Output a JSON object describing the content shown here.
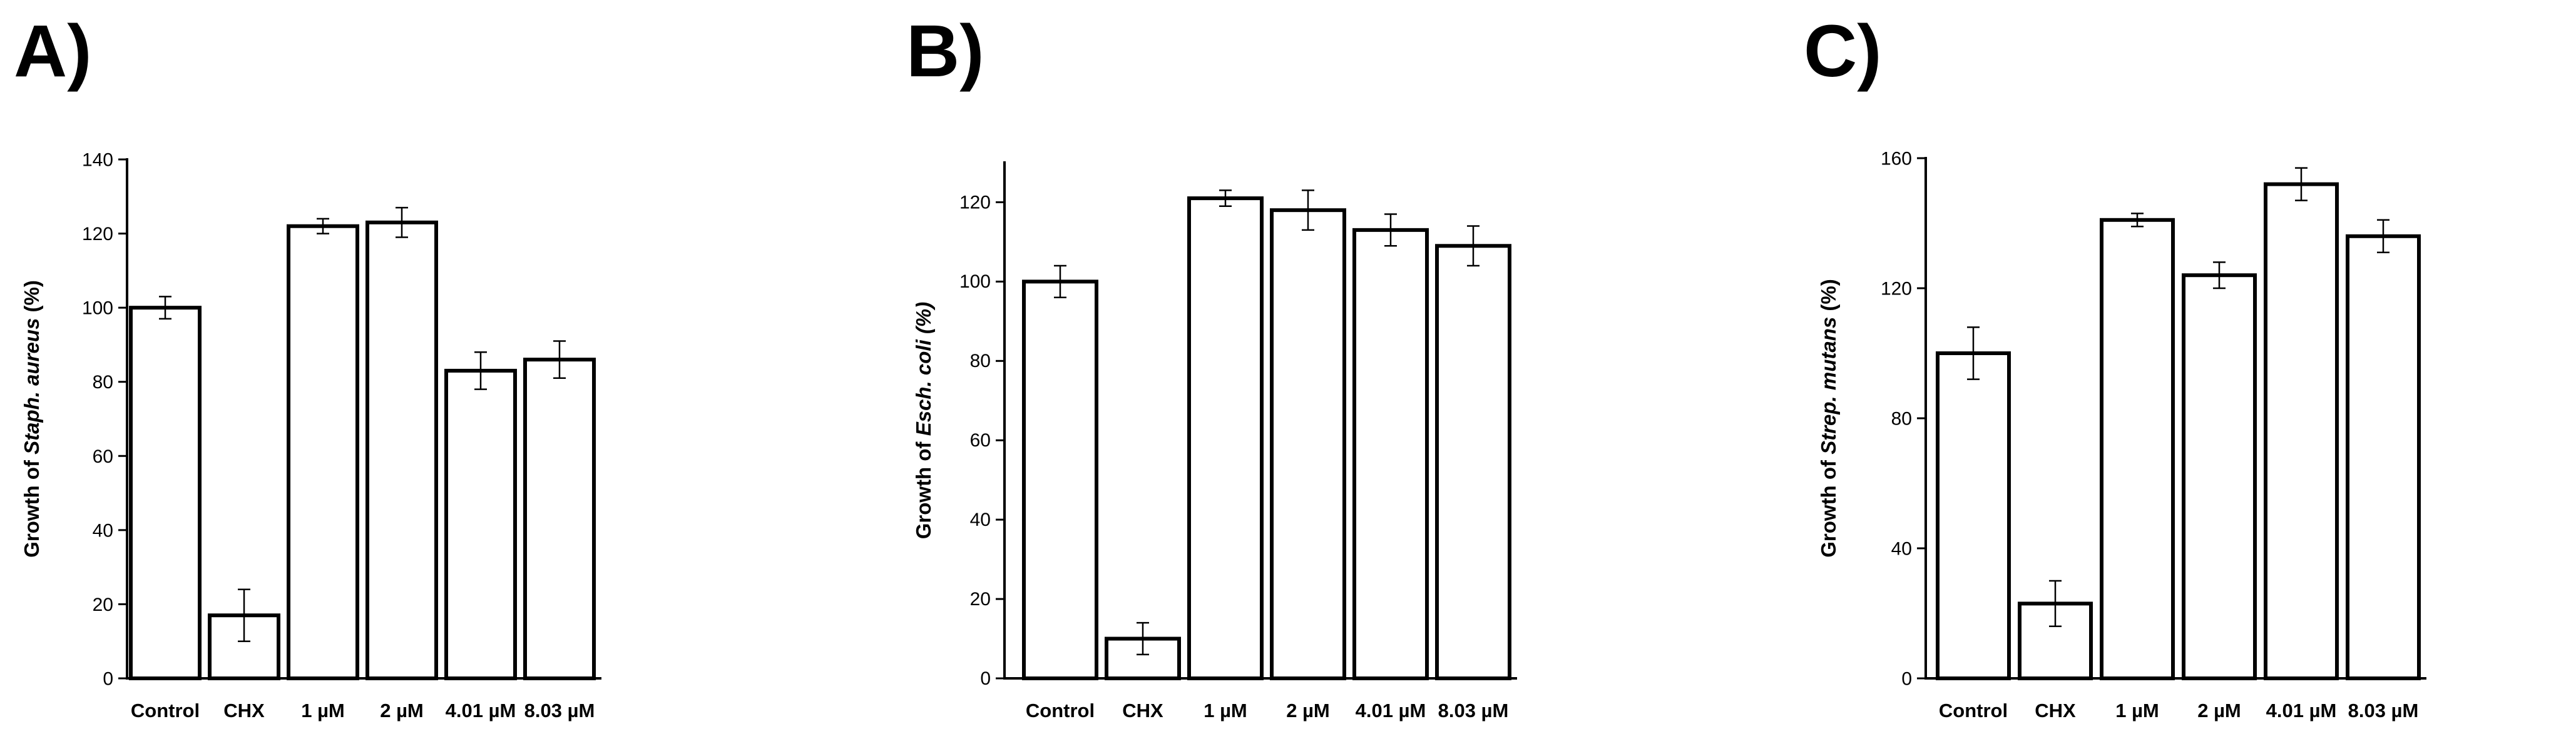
{
  "chart_data": [
    {
      "panel_label": "A)",
      "type": "bar",
      "ylabel": "Growth of Staph. aureus (%)",
      "ylabel_parts": [
        {
          "text": "Growth of ",
          "italic": false
        },
        {
          "text": "Staph. aureus",
          "italic": true
        },
        {
          "text": " (%)",
          "italic": false
        }
      ],
      "categories": [
        "Control",
        "CHX",
        "1 µM",
        "2 µM",
        "4.01 µM",
        "8.03 µM"
      ],
      "values": [
        100,
        17,
        122,
        123,
        83,
        86
      ],
      "errors": [
        3,
        7,
        2,
        4,
        5,
        5
      ],
      "ylim": [
        0,
        140
      ],
      "yticks": [
        0,
        20,
        40,
        60,
        80,
        100,
        120,
        140
      ],
      "grid": false,
      "bar_fill": "#ffffff",
      "bar_stroke": "#000000"
    },
    {
      "panel_label": "B)",
      "type": "bar",
      "ylabel": "Growth of Esch. coli (%)",
      "ylabel_parts": [
        {
          "text": "Growth of ",
          "italic": false
        },
        {
          "text": "Esch. coli",
          "italic": true
        },
        {
          "text": " (%)",
          "italic": true
        }
      ],
      "categories": [
        "Control",
        "CHX",
        "1 µM",
        "2 µM",
        "4.01 µM",
        "8.03 µM"
      ],
      "values": [
        100,
        10,
        121,
        118,
        113,
        109
      ],
      "errors": [
        4,
        4,
        2,
        5,
        4,
        5
      ],
      "ylim": [
        0,
        130
      ],
      "yticks": [
        0,
        20,
        40,
        60,
        80,
        100,
        120
      ],
      "grid": false,
      "bar_fill": "#ffffff",
      "bar_stroke": "#000000"
    },
    {
      "panel_label": "C)",
      "type": "bar",
      "ylabel": "Growth of Strep. mutans (%)",
      "ylabel_parts": [
        {
          "text": "Growth of ",
          "italic": false
        },
        {
          "text": "Strep. mutans",
          "italic": true
        },
        {
          "text": " (%)",
          "italic": false
        }
      ],
      "categories": [
        "Control",
        "CHX",
        "1 µM",
        "2 µM",
        "4.01 µM",
        "8.03 µM"
      ],
      "values": [
        100,
        23,
        141,
        124,
        152,
        136
      ],
      "errors": [
        8,
        7,
        2,
        4,
        5,
        5
      ],
      "ylim": [
        0,
        160
      ],
      "yticks": [
        0,
        40,
        80,
        120,
        160
      ],
      "grid": false,
      "bar_fill": "#ffffff",
      "bar_stroke": "#000000"
    }
  ]
}
